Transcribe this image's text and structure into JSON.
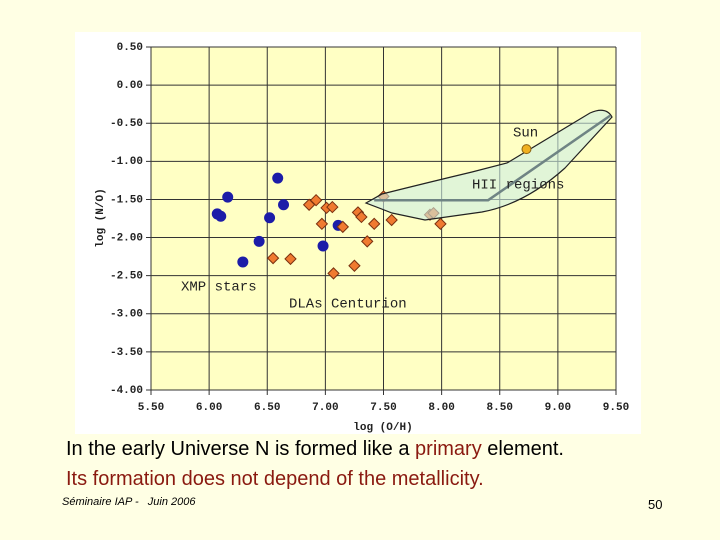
{
  "chart_data": {
    "type": "scatter",
    "x_label": "log (O/H)",
    "y_label": "log (N/O)",
    "xlim": [
      5.5,
      9.5
    ],
    "ylim": [
      -4.0,
      0.5
    ],
    "grid": true,
    "xticks": [
      {
        "value": 5.5,
        "label": "5.50"
      },
      {
        "value": 6.0,
        "label": "6.00"
      },
      {
        "value": 6.5,
        "label": "6.50"
      },
      {
        "value": 7.0,
        "label": "7.00"
      },
      {
        "value": 7.5,
        "label": "7.50"
      },
      {
        "value": 8.0,
        "label": "8.00"
      },
      {
        "value": 8.5,
        "label": "8.50"
      },
      {
        "value": 9.0,
        "label": "9.00"
      },
      {
        "value": 9.5,
        "label": "9.50"
      }
    ],
    "yticks": [
      {
        "value": 0.5,
        "label": "0.50"
      },
      {
        "value": 0.0,
        "label": "0.00"
      },
      {
        "value": -0.5,
        "label": "-0.50"
      },
      {
        "value": -1.0,
        "label": "-1.00"
      },
      {
        "value": -1.5,
        "label": "-1.50"
      },
      {
        "value": -2.0,
        "label": "-2.00"
      },
      {
        "value": -2.5,
        "label": "-2.50"
      },
      {
        "value": -3.0,
        "label": "-3.00"
      },
      {
        "value": -3.5,
        "label": "-3.50"
      },
      {
        "value": -4.0,
        "label": "-4.00"
      }
    ],
    "series": [
      {
        "name": "XMP stars",
        "marker": "circle",
        "color": "#1c1ca8",
        "x": [
          6.16,
          6.07,
          6.1,
          6.29,
          6.43,
          6.52,
          6.59,
          6.64,
          6.98,
          7.11
        ],
        "y": [
          -1.47,
          -1.69,
          -1.72,
          -2.32,
          -2.05,
          -1.74,
          -1.22,
          -1.57,
          -2.11,
          -1.84
        ]
      },
      {
        "name": "DLAs Centurion",
        "marker": "diamond",
        "color": "#f07a30",
        "x": [
          6.55,
          6.7,
          6.86,
          6.92,
          6.97,
          7.01,
          7.06,
          7.07,
          7.15,
          7.25,
          7.28,
          7.31,
          7.36,
          7.42,
          7.5,
          7.57,
          7.9,
          7.93,
          7.99
        ],
        "y": [
          -2.27,
          -2.28,
          -1.57,
          -1.51,
          -1.82,
          -1.61,
          -1.6,
          -2.47,
          -1.86,
          -2.37,
          -1.67,
          -1.73,
          -2.05,
          -1.82,
          -1.46,
          -1.77,
          -1.7,
          -1.68,
          -1.82
        ]
      },
      {
        "name": "Sun",
        "marker": "circle",
        "color": "#f0b020",
        "x": [
          8.73
        ],
        "y": [
          -0.84
        ]
      },
      {
        "name": "HII regions",
        "marker": "line",
        "color": "#6f8484",
        "x": [
          7.42,
          8.4,
          9.45
        ],
        "y": [
          -1.51,
          -1.51,
          -0.4
        ]
      }
    ]
  },
  "slide": {
    "line1_a": "In the early Universe N is formed like a ",
    "line1_b": "primary",
    "line1_c": " element.",
    "line2": "Its formation does not depend of the metallicity.",
    "footer": "Séminaire IAP -   Juin 2006",
    "page": "50"
  }
}
